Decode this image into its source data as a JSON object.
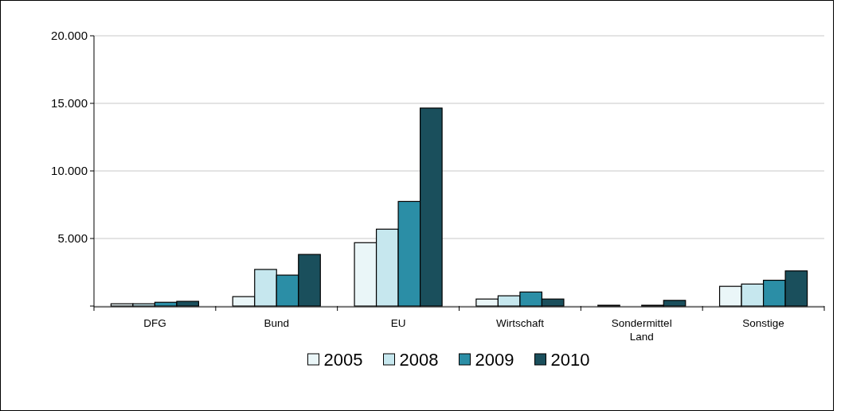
{
  "chart_data": {
    "type": "bar",
    "categories": [
      "DFG",
      "Bund",
      "EU",
      "Wirtschaft",
      "Sondermittel Land",
      "Sonstige"
    ],
    "series": [
      {
        "name": "2005",
        "color": "#eaf6f8",
        "values": [
          170,
          700,
          4690,
          520,
          60,
          1460
        ]
      },
      {
        "name": "2008",
        "color": "#c6e7ee",
        "values": [
          170,
          2710,
          5690,
          760,
          0,
          1630
        ]
      },
      {
        "name": "2009",
        "color": "#2b8ea6",
        "values": [
          280,
          2290,
          7740,
          1040,
          60,
          1910
        ]
      },
      {
        "name": "2010",
        "color": "#1a4f5c",
        "values": [
          350,
          3820,
          14650,
          520,
          420,
          2600
        ]
      }
    ],
    "ylim": [
      0,
      20000
    ],
    "yticks": [
      {
        "value": 0,
        "label": null
      },
      {
        "value": 5000,
        "label": "5.000"
      },
      {
        "value": 10000,
        "label": "10.000"
      },
      {
        "value": 15000,
        "label": "15.000"
      },
      {
        "value": 20000,
        "label": "20.000"
      }
    ],
    "grid": "y",
    "legend": "bottom"
  }
}
